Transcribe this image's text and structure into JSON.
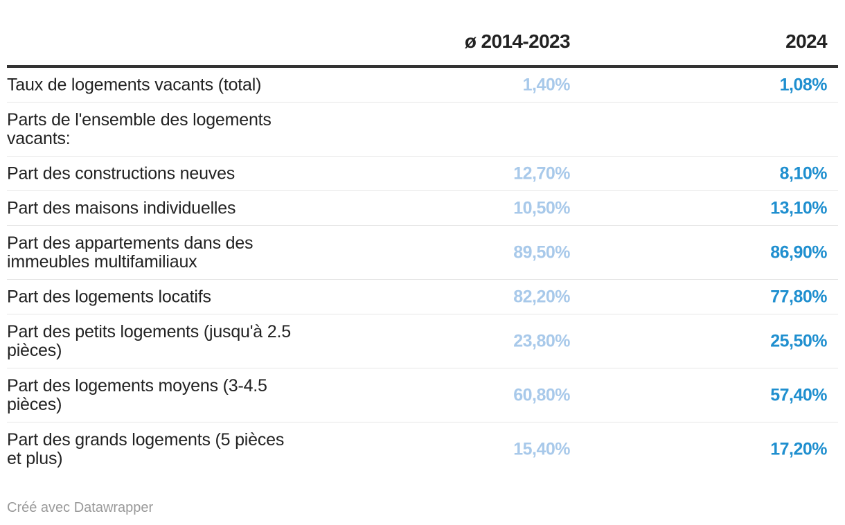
{
  "chart_data": {
    "type": "table",
    "columns": [
      "ø 2014-2023",
      "2024"
    ],
    "rows": [
      {
        "label": "Taux de logements vacants (total)",
        "values": [
          "1,40%",
          "1,08%"
        ]
      },
      {
        "label": "Parts de l'ensemble des logements vacants:",
        "values": [
          "",
          ""
        ]
      },
      {
        "label": "Part des constructions neuves",
        "values": [
          "12,70%",
          "8,10%"
        ]
      },
      {
        "label": "Part des maisons individuelles",
        "values": [
          "10,50%",
          "13,10%"
        ]
      },
      {
        "label": "Part des appartements dans des immeubles multifamiliaux",
        "values": [
          "89,50%",
          "86,90%"
        ]
      },
      {
        "label": "Part des logements locatifs",
        "values": [
          "82,20%",
          "77,80%"
        ]
      },
      {
        "label": "Part des petits logements (jusqu'à 2.5 pièces)",
        "values": [
          "23,80%",
          "25,50%"
        ]
      },
      {
        "label": "Part des logements moyens (3-4.5 pièces)",
        "values": [
          "60,80%",
          "57,40%"
        ]
      },
      {
        "label": "Part des grands logements (5 pièces et plus)",
        "values": [
          "15,40%",
          "17,20%"
        ]
      }
    ],
    "colors": {
      "col1": "#a8c9ea",
      "col2": "#1f8fcf"
    }
  },
  "footer": "Créé avec Datawrapper"
}
